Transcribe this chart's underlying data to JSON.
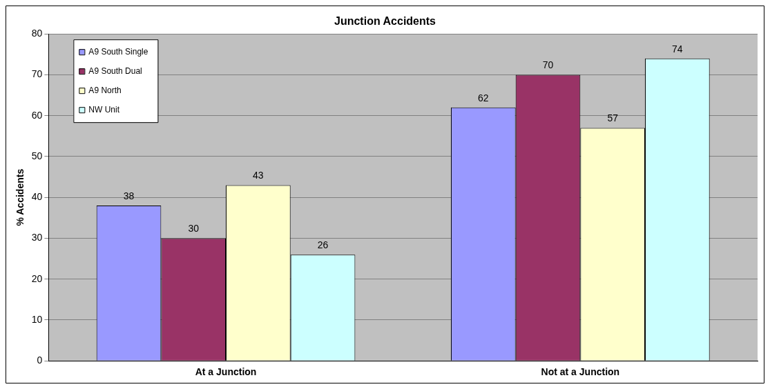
{
  "chart_data": {
    "type": "bar",
    "title": "Junction Accidents",
    "ylabel": "% Accidents",
    "categories": [
      "At a Junction",
      "Not at a Junction"
    ],
    "series": [
      {
        "name": "A9 South Single",
        "color": "#9999ff",
        "values": [
          38,
          62
        ]
      },
      {
        "name": "A9 South Dual",
        "color": "#993366",
        "values": [
          30,
          70
        ]
      },
      {
        "name": "A9 North",
        "color": "#ffffcc",
        "values": [
          43,
          57
        ]
      },
      {
        "name": "NW Unit",
        "color": "#ccffff",
        "values": [
          26,
          74
        ]
      }
    ],
    "ylim": [
      0,
      80
    ],
    "yticks": [
      0,
      10,
      20,
      30,
      40,
      50,
      60,
      70,
      80
    ],
    "grid": "y",
    "legend": "top left",
    "data_labels": true
  }
}
